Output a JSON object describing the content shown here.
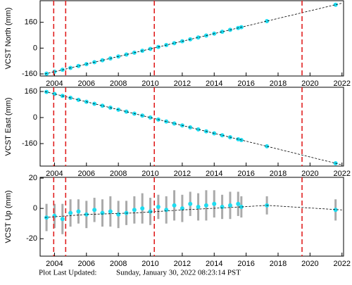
{
  "chart_data": [
    {
      "type": "scatter",
      "ylabel": "VCST North (mm)",
      "x": [
        2003.5,
        2004,
        2004.5,
        2005,
        2005.5,
        2006,
        2006.5,
        2007,
        2007.5,
        2008,
        2008.5,
        2009,
        2009.5,
        2010,
        2010.5,
        2011,
        2011.5,
        2012,
        2012.5,
        2013,
        2013.5,
        2014,
        2014.5,
        2015,
        2015.5,
        2015.7,
        2017.3,
        2021.6
      ],
      "values": [
        -158.1,
        -146.3,
        -134.5,
        -122.7,
        -110.9,
        -99.1,
        -87.3,
        -75.5,
        -63.7,
        -51.9,
        -40.1,
        -28.3,
        -16.5,
        -4.7,
        7.1,
        18.9,
        30.7,
        42.5,
        54.3,
        66.1,
        77.9,
        89.7,
        101.5,
        113.3,
        125.1,
        129.8,
        167.6,
        269.0
      ],
      "color": "#1fdcf0",
      "model": {
        "x": [
          2003.4,
          2022
        ],
        "values": [
          -160.5,
          278.5
        ],
        "color": "#000000"
      },
      "vlines": [
        2003.95,
        2004.7,
        2010.25,
        2019.5
      ],
      "vline_color": "#e02020",
      "xlim": [
        2003.1,
        2022.1
      ],
      "xticks": [
        2004,
        2006,
        2008,
        2010,
        2012,
        2014,
        2016,
        2018,
        2020,
        2022
      ],
      "ylim": [
        -173,
        294
      ],
      "yticks": [
        -160,
        0,
        160
      ]
    },
    {
      "type": "scatter",
      "ylabel": "VCST East (mm)",
      "x": [
        2003.5,
        2004,
        2004.5,
        2005,
        2005.5,
        2006,
        2006.5,
        2007,
        2007.5,
        2008,
        2008.5,
        2009,
        2009.5,
        2010,
        2010.5,
        2011,
        2011.5,
        2012,
        2012.5,
        2013,
        2013.5,
        2014,
        2014.5,
        2015,
        2015.5,
        2015.7,
        2017.3,
        2021.6
      ],
      "values": [
        157.3,
        145.2,
        133.1,
        121.0,
        108.9,
        96.8,
        84.7,
        72.6,
        60.5,
        48.4,
        36.3,
        24.2,
        12.1,
        0,
        -12.1,
        -24.2,
        -36.3,
        -48.4,
        -60.5,
        -72.6,
        -84.7,
        -96.8,
        -108.9,
        -121.0,
        -133.1,
        -137.9,
        -176.7,
        -280.7
      ],
      "color": "#1fdcf0",
      "model": {
        "x": [
          2003.4,
          2022
        ],
        "values": [
          159.7,
          -290.4
        ],
        "color": "#000000"
      },
      "vlines": [
        2003.95,
        2004.7,
        2010.25,
        2019.5
      ],
      "vline_color": "#e02020",
      "xlim": [
        2003.1,
        2022.1
      ],
      "xticks": [
        2004,
        2006,
        2008,
        2010,
        2012,
        2014,
        2016,
        2018,
        2020,
        2022
      ],
      "ylim": [
        -298,
        186
      ],
      "yticks": [
        -160,
        0,
        160
      ]
    },
    {
      "type": "errorbar",
      "ylabel": "VCST Up (mm)",
      "x": [
        2003.5,
        2004,
        2004.5,
        2005,
        2005.5,
        2006,
        2006.5,
        2007,
        2007.5,
        2008,
        2008.5,
        2009,
        2009.5,
        2010,
        2010.5,
        2011,
        2011.5,
        2012,
        2012.5,
        2013,
        2013.5,
        2014,
        2014.5,
        2015,
        2015.5,
        2015.7,
        2017.3,
        2021.6
      ],
      "values": [
        -6,
        -5,
        -7,
        -3,
        -2,
        -4,
        -1,
        -3,
        -2,
        -4,
        -3,
        -1,
        0,
        -2,
        1,
        -1,
        2,
        0,
        3,
        1,
        2,
        3,
        1,
        2,
        3,
        1,
        2,
        -1
      ],
      "errors": [
        9,
        8,
        10,
        9,
        8,
        9,
        8,
        9,
        10,
        9,
        8,
        9,
        10,
        9,
        8,
        9,
        10,
        9,
        8,
        9,
        10,
        9,
        8,
        9,
        8,
        7,
        6,
        7
      ],
      "color": "#1fdcf0",
      "error_color": "#aaaaaa",
      "model": {
        "x": [
          2003.4,
          2006,
          2009,
          2012,
          2015.7,
          2017.3,
          2022
        ],
        "values": [
          -6,
          -4,
          -3,
          -1,
          1,
          2,
          -1
        ],
        "color": "#000000"
      },
      "vlines": [
        2003.95,
        2004.7,
        2010.25,
        2019.5
      ],
      "vline_color": "#e02020",
      "xlim": [
        2003.1,
        2022.1
      ],
      "xticks": [
        2004,
        2006,
        2008,
        2010,
        2012,
        2014,
        2016,
        2018,
        2020,
        2022
      ],
      "ylim": [
        -31.5,
        20.5
      ],
      "yticks": [
        -20,
        0,
        20
      ]
    }
  ],
  "footer": {
    "label": "Plot Last Updated:",
    "date": "Sunday, January 30, 2022 08:23:14 PST"
  }
}
